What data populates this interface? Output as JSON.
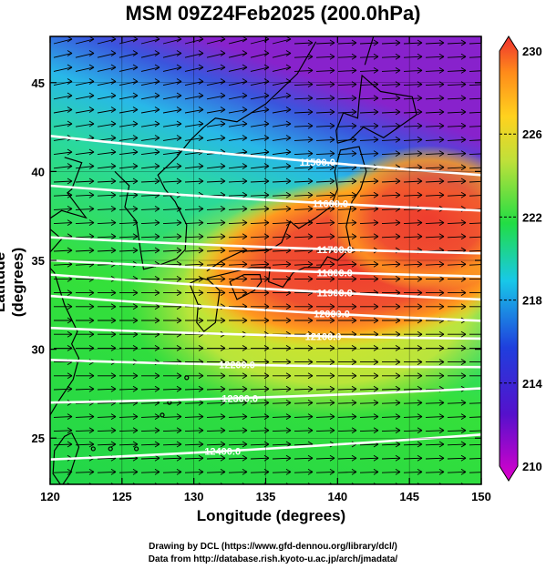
{
  "title": "MSM 09Z24Feb2025 (200.0hPa)",
  "xaxis": {
    "label": "Longitude (degrees)",
    "ticks": [
      120,
      125,
      130,
      135,
      140,
      145,
      150
    ],
    "range": [
      120,
      150
    ]
  },
  "yaxis": {
    "label": "Latitude  (degrees)",
    "ticks": [
      25,
      30,
      35,
      40,
      45
    ],
    "range": [
      22.4,
      47.6
    ]
  },
  "colorbar": {
    "min": 210,
    "max": 230,
    "ticks": [
      "230",
      "226",
      "222",
      "218",
      "214",
      "210"
    ],
    "tick_values": [
      230,
      226,
      222,
      218,
      214,
      210
    ],
    "colors": [
      "#cc00cc",
      "#2222cc",
      "#1fa8e0",
      "#22dd44",
      "#bfe03a",
      "#ffd21e",
      "#ff8a1a",
      "#ee3030"
    ]
  },
  "contours": [
    {
      "label": "11500.0",
      "lat_w": 42.0,
      "lat_e": 39.8,
      "label_lon": 138.6
    },
    {
      "label": "11600.0",
      "lat_w": 39.2,
      "lat_e": 37.8,
      "label_lon": 139.5
    },
    {
      "label": "11700.0",
      "lat_w": 36.3,
      "lat_e": 35.4,
      "label_lon": 139.8
    },
    {
      "label": "11800.0",
      "lat_w": 35.0,
      "lat_e": 34.1,
      "label_lon": 139.8
    },
    {
      "label": "11900.0",
      "lat_w": 34.2,
      "lat_e": 32.8,
      "label_lon": 139.8
    },
    {
      "label": "12000.0",
      "lat_w": 33.0,
      "lat_e": 31.6,
      "label_lon": 139.6
    },
    {
      "label": "12100.0",
      "lat_w": 31.2,
      "lat_e": 30.6,
      "label_lon": 139.0
    },
    {
      "label": "12200.0",
      "lat_w": 29.4,
      "lat_e": 29.0,
      "label_lon": 133.0
    },
    {
      "label": "12300.0",
      "lat_w": 27.0,
      "lat_e": 27.8,
      "label_lon": 133.2
    },
    {
      "label": "12400.0",
      "lat_w": 23.8,
      "lat_e": 25.2,
      "label_lon": 132.0
    }
  ],
  "credits": {
    "line1": "Drawing by DCL (https://www.gfd-dennou.org/library/dcl/)",
    "line2": "Data from http://database.rish.kyoto-u.ac.jp/arch/jmadata/"
  }
}
